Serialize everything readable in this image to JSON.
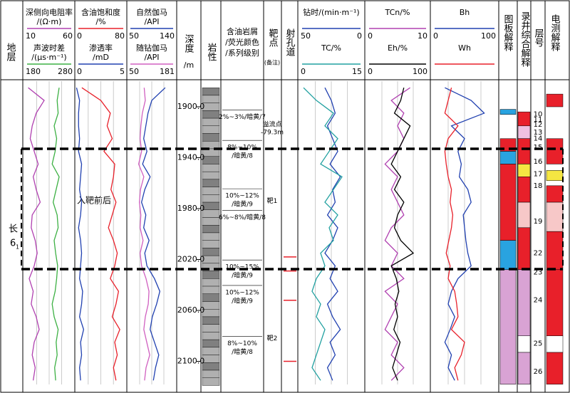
{
  "header_left": "地层",
  "formation": [
    "长",
    "6",
    "1"
  ],
  "annotation": "入靶前后",
  "depth_header": "深度",
  "depth_unit": "/m",
  "depth_ticks": [
    {
      "value": 1900,
      "label": "1900.0"
    },
    {
      "value": 1940,
      "label": "1940.0"
    },
    {
      "value": 1980,
      "label": "1980.0"
    },
    {
      "value": 2020,
      "label": "2020.0"
    },
    {
      "value": 2060,
      "label": "2060.0"
    },
    {
      "value": 2100,
      "label": "2100.0"
    }
  ],
  "lithology_header": "岩性",
  "oil_header": [
    "含油岩屑",
    "/荧光颜色",
    "/系列级别"
  ],
  "target_header": "靶点",
  "target_note": "(备注)",
  "perf_header": "射孔道",
  "plate_header": "图板解释",
  "mud_header": "录井综合解释",
  "layer_header": "层号",
  "elog_header": "电测解释",
  "depths": [
    1885,
    1895,
    1905,
    1915,
    1925,
    1935,
    1945,
    1955,
    1965,
    1975,
    1985,
    1995,
    2005,
    2015,
    2025,
    2035,
    2045,
    2055,
    2065,
    2075,
    2085,
    2095,
    2105,
    2115
  ],
  "tracks": [
    {
      "curves": [
        {
          "name": "深侧向电阻率",
          "unit": "/(Ω·m)",
          "left": 10,
          "right": 60,
          "color": "#b040b0",
          "values": [
            14,
            30,
            22,
            18,
            16,
            20,
            24,
            19,
            22,
            26,
            18,
            17,
            21,
            23,
            20,
            15,
            19,
            17,
            22,
            25,
            20,
            18,
            21,
            19
          ]
        },
        {
          "name": "声波时差",
          "unit": "/(μs·m⁻¹)",
          "left": 180,
          "right": 280,
          "color": "#3cb043",
          "values": [
            250,
            246,
            248,
            240,
            245,
            242,
            236,
            250,
            244,
            238,
            246,
            248,
            240,
            243,
            247,
            245,
            242,
            236,
            240,
            248,
            244,
            246,
            241,
            243
          ]
        }
      ]
    },
    {
      "curves": [
        {
          "name": "含油饱和度",
          "unit": "/%",
          "left": 0,
          "right": 80,
          "color": "#e8202a",
          "values": [
            10,
            40,
            55,
            50,
            58,
            45,
            62,
            60,
            56,
            64,
            58,
            52,
            60,
            66,
            62,
            55,
            68,
            64,
            58,
            70,
            62,
            66,
            60,
            64
          ]
        },
        {
          "name": "渗透率",
          "unit": "/mD",
          "left": 0,
          "right": 5,
          "color": "#2040b0",
          "values": [
            0.1,
            0.4,
            0.3,
            0.3,
            0.4,
            0.3,
            0.6,
            0.5,
            0.4,
            0.6,
            0.5,
            0.3,
            0.5,
            0.6,
            0.5,
            0.4,
            0.7,
            0.6,
            0.4,
            0.8,
            0.5,
            0.6,
            0.4,
            0.5
          ]
        }
      ]
    },
    {
      "curves": [
        {
          "name": "自然伽马",
          "unit": "/API",
          "left": 50,
          "right": 140,
          "color": "#2040b0",
          "values": [
            120,
            95,
            88,
            84,
            80,
            86,
            78,
            92,
            82,
            76,
            84,
            80,
            90,
            82,
            86,
            100,
            110,
            104,
            96,
            92,
            100,
            108,
            102,
            98
          ]
        },
        {
          "name": "随钻伽马",
          "unit": "/API",
          "left": 50,
          "right": 181,
          "color": "#d060c0",
          "values": [
            95,
            98,
            90,
            86,
            84,
            88,
            80,
            94,
            85,
            82,
            86,
            84,
            92,
            84,
            88,
            100,
            108,
            106,
            98,
            94,
            102,
            110,
            100,
            96
          ]
        }
      ]
    },
    {
      "curves": [
        {
          "name": "钻时/(min·m⁻¹)",
          "left": 50,
          "right": 0,
          "color": "#2040b0",
          "values": [
            30,
            25,
            22,
            28,
            24,
            20,
            26,
            18,
            24,
            22,
            28,
            20,
            24,
            30,
            22,
            26,
            20,
            28,
            24,
            18,
            26,
            22,
            28,
            24
          ]
        },
        {
          "name": "TC/%",
          "left": 0,
          "right": 15,
          "color": "#20a0a0",
          "values": [
            1,
            4,
            8,
            6,
            9,
            7,
            5,
            10,
            8,
            6,
            9,
            7,
            8,
            5,
            6,
            4,
            3,
            5,
            4,
            6,
            5,
            4,
            3,
            5
          ]
        }
      ]
    },
    {
      "curves": [
        {
          "name": "TCn/%",
          "left": 0,
          "right": 10,
          "color": "#b040b0",
          "values": [
            7,
            4,
            6,
            5,
            6,
            5,
            3,
            5,
            4,
            5,
            6,
            4,
            3,
            5,
            4,
            6,
            3,
            5,
            4,
            3,
            5,
            4,
            6,
            4
          ]
        },
        {
          "name": "Eh/%",
          "left": 0,
          "right": 100,
          "color": "#000000",
          "values": [
            60,
            55,
            45,
            70,
            60,
            50,
            40,
            55,
            45,
            60,
            50,
            45,
            55,
            75,
            40,
            48,
            52,
            46,
            50,
            44,
            54,
            48,
            42,
            50
          ]
        }
      ]
    },
    {
      "curves": [
        {
          "name": "Bh",
          "left": 0,
          "right": 100,
          "color": "#2040b0",
          "values": [
            20,
            60,
            80,
            30,
            50,
            40,
            45,
            42,
            55,
            60,
            48,
            50,
            52,
            55,
            60,
            40,
            30,
            25,
            35,
            28,
            20,
            30,
            25,
            35
          ]
        },
        {
          "name": "Wh",
          "color": "#e8202a",
          "values": [
            30,
            25,
            20,
            40,
            25,
            20,
            22,
            25,
            30,
            28,
            32,
            30,
            26,
            22,
            28,
            25,
            35,
            38,
            40,
            30,
            50,
            45,
            35,
            40
          ]
        }
      ]
    }
  ],
  "oil_shows": [
    {
      "lines": [
        "2%~3%/暗黄/7"
      ],
      "depth": 1908
    },
    {
      "lines": [
        "8%~10%",
        "/暗黄/8"
      ],
      "depth": 1932
    },
    {
      "lines": [
        "10%~12%",
        "/暗黄/9"
      ],
      "depth": 1970
    },
    {
      "lines": [
        "6%~8%/暗黄/8"
      ],
      "depth": 1987
    },
    {
      "lines": [
        "10%~15%",
        "/暗黄/9"
      ],
      "depth": 2026
    },
    {
      "lines": [
        "10%~12%",
        "/暗黄/9"
      ],
      "depth": 2046
    },
    {
      "lines": [
        "8%~10%",
        "/暗黄/8"
      ],
      "depth": 2086
    }
  ],
  "targets": [
    {
      "lines": [
        "溢流点",
        "-79.3m"
      ],
      "depth": 1914
    },
    {
      "lines": [
        "靶1"
      ],
      "depth": 1974
    },
    {
      "lines": [
        "靶2"
      ],
      "depth": 2082
    }
  ],
  "perforations": [
    2018,
    2029,
    2052,
    2100
  ],
  "layers": [
    {
      "label": "10",
      "depth": 1906
    },
    {
      "label": "11",
      "depth": 1910
    },
    {
      "label": "12",
      "depth": 1914
    },
    {
      "label": "13",
      "depth": 1920
    },
    {
      "label": "14",
      "depth": 1925
    },
    {
      "label": "15",
      "depth": 1932
    },
    {
      "label": "16",
      "depth": 1943
    },
    {
      "label": "17",
      "depth": 1953
    },
    {
      "label": "18",
      "depth": 1962
    },
    {
      "label": "19",
      "depth": 1990
    },
    {
      "label": "22",
      "depth": 2015
    },
    {
      "label": "23",
      "depth": 2030
    },
    {
      "label": "24",
      "depth": 2052
    },
    {
      "label": "25",
      "depth": 2086
    },
    {
      "label": "26",
      "depth": 2108
    }
  ],
  "plate_blocks": [
    {
      "top": 1902,
      "bottom": 1906,
      "color": "#29a3e0"
    },
    {
      "top": 1925,
      "bottom": 1935,
      "color": "#e8202a"
    },
    {
      "top": 1935,
      "bottom": 1945,
      "color": "#29a3e0"
    },
    {
      "top": 1945,
      "bottom": 2005,
      "color": "#e8202a"
    },
    {
      "top": 2005,
      "bottom": 2028,
      "color": "#29a3e0"
    },
    {
      "top": 2028,
      "bottom": 2118,
      "color": "#d9a3d4"
    }
  ],
  "mud_blocks": [
    {
      "top": 1904,
      "bottom": 1915,
      "color": "#e8202a"
    },
    {
      "top": 1915,
      "bottom": 1925,
      "color": "#f0c0e0"
    },
    {
      "top": 1925,
      "bottom": 1945,
      "color": "#e8202a"
    },
    {
      "top": 1945,
      "bottom": 1955,
      "color": "#f5e642"
    },
    {
      "top": 1955,
      "bottom": 1975,
      "color": "#e8202a"
    },
    {
      "top": 1975,
      "bottom": 1995,
      "color": "#f7c8c8"
    },
    {
      "top": 1995,
      "bottom": 2028,
      "color": "#e8202a"
    },
    {
      "top": 2028,
      "bottom": 2080,
      "color": "#d9a3d4"
    },
    {
      "top": 2080,
      "bottom": 2093,
      "color": "#ffffff"
    },
    {
      "top": 2093,
      "bottom": 2118,
      "color": "#d9a3d4"
    }
  ],
  "elog_blocks": [
    {
      "top": 1890,
      "bottom": 1900,
      "color": "#e8202a"
    },
    {
      "top": 1925,
      "bottom": 1945,
      "color": "#e8202a"
    },
    {
      "top": 1950,
      "bottom": 1958,
      "color": "#f5e642"
    },
    {
      "top": 1962,
      "bottom": 1975,
      "color": "#e8202a"
    },
    {
      "top": 1975,
      "bottom": 1998,
      "color": "#f7c8c8"
    },
    {
      "top": 1998,
      "bottom": 2028,
      "color": "#e8202a"
    },
    {
      "top": 2028,
      "bottom": 2080,
      "color": "#e8202a"
    },
    {
      "top": 2080,
      "bottom": 2093,
      "color": "#ffffff"
    },
    {
      "top": 2093,
      "bottom": 2118,
      "color": "#e8202a"
    }
  ]
}
